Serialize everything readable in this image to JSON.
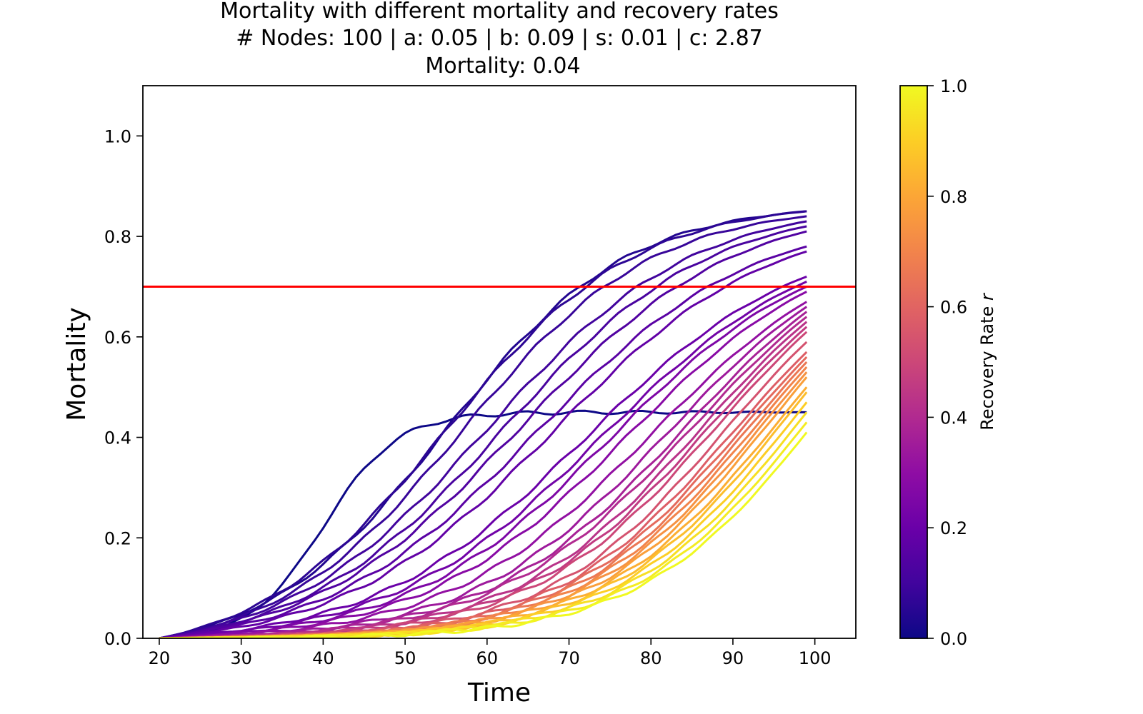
{
  "chart_data": {
    "type": "line",
    "title_lines": [
      "Mortality with different mortality and recovery rates",
      "# Nodes: 100 | a: 0.05 | b: 0.09 | s: 0.01 | c: 2.87",
      "Mortality: 0.04"
    ],
    "xlabel": "Time",
    "ylabel": "Mortality",
    "xlim": [
      18,
      105
    ],
    "ylim": [
      0,
      1.1
    ],
    "xticks": [
      "20",
      "30",
      "40",
      "50",
      "60",
      "70",
      "80",
      "90",
      "100"
    ],
    "yticks": [
      "0.0",
      "0.2",
      "0.4",
      "0.6",
      "0.8",
      "1.0"
    ],
    "threshold": {
      "y": 0.7,
      "color": "#ff0000"
    },
    "colorbar": {
      "label": "Recovery Rate r",
      "range": [
        0,
        1
      ],
      "ticks": [
        "0.0",
        "0.2",
        "0.4",
        "0.6",
        "0.8",
        "1.0"
      ],
      "colormap": "plasma"
    },
    "time_range": [
      20,
      99
    ],
    "series": [
      {
        "r": 0.0,
        "final": 0.45,
        "center": 40,
        "width": 4.5
      },
      {
        "r": 0.04,
        "final": 0.85,
        "center": 55,
        "width": 11.0
      },
      {
        "r": 0.06,
        "final": 0.85,
        "center": 55,
        "width": 11.5
      },
      {
        "r": 0.08,
        "final": 0.84,
        "center": 57,
        "width": 11.5
      },
      {
        "r": 0.1,
        "final": 0.83,
        "center": 60,
        "width": 12.5
      },
      {
        "r": 0.12,
        "final": 0.82,
        "center": 62,
        "width": 12.5
      },
      {
        "r": 0.14,
        "final": 0.81,
        "center": 64,
        "width": 13.0
      },
      {
        "r": 0.16,
        "final": 0.78,
        "center": 66,
        "width": 13.0
      },
      {
        "r": 0.18,
        "final": 0.77,
        "center": 68,
        "width": 13.0
      },
      {
        "r": 0.2,
        "final": 0.72,
        "center": 72,
        "width": 13.0
      },
      {
        "r": 0.22,
        "final": 0.71,
        "center": 74,
        "width": 13.0
      },
      {
        "r": 0.25,
        "final": 0.7,
        "center": 75,
        "width": 12.5
      },
      {
        "r": 0.28,
        "final": 0.69,
        "center": 77,
        "width": 12.5
      },
      {
        "r": 0.31,
        "final": 0.67,
        "center": 80,
        "width": 12.5
      },
      {
        "r": 0.34,
        "final": 0.66,
        "center": 82,
        "width": 12.0
      },
      {
        "r": 0.37,
        "final": 0.65,
        "center": 84,
        "width": 12.0
      },
      {
        "r": 0.4,
        "final": 0.64,
        "center": 85,
        "width": 12.0
      },
      {
        "r": 0.43,
        "final": 0.63,
        "center": 86,
        "width": 11.5
      },
      {
        "r": 0.46,
        "final": 0.62,
        "center": 87,
        "width": 11.5
      },
      {
        "r": 0.5,
        "final": 0.61,
        "center": 88,
        "width": 11.5
      },
      {
        "r": 0.54,
        "final": 0.59,
        "center": 89,
        "width": 11.0
      },
      {
        "r": 0.58,
        "final": 0.57,
        "center": 90,
        "width": 11.0
      },
      {
        "r": 0.62,
        "final": 0.56,
        "center": 91,
        "width": 11.0
      },
      {
        "r": 0.66,
        "final": 0.55,
        "center": 92,
        "width": 11.0
      },
      {
        "r": 0.7,
        "final": 0.54,
        "center": 93,
        "width": 11.0
      },
      {
        "r": 0.74,
        "final": 0.53,
        "center": 94,
        "width": 11.0
      },
      {
        "r": 0.78,
        "final": 0.52,
        "center": 95,
        "width": 11.0
      },
      {
        "r": 0.82,
        "final": 0.5,
        "center": 96,
        "width": 11.0
      },
      {
        "r": 0.86,
        "final": 0.49,
        "center": 97,
        "width": 11.0
      },
      {
        "r": 0.9,
        "final": 0.47,
        "center": 98,
        "width": 11.0
      },
      {
        "r": 0.94,
        "final": 0.45,
        "center": 99,
        "width": 11.0
      },
      {
        "r": 0.97,
        "final": 0.43,
        "center": 100,
        "width": 11.0
      },
      {
        "r": 1.0,
        "final": 0.41,
        "center": 101,
        "width": 11.0
      }
    ]
  }
}
